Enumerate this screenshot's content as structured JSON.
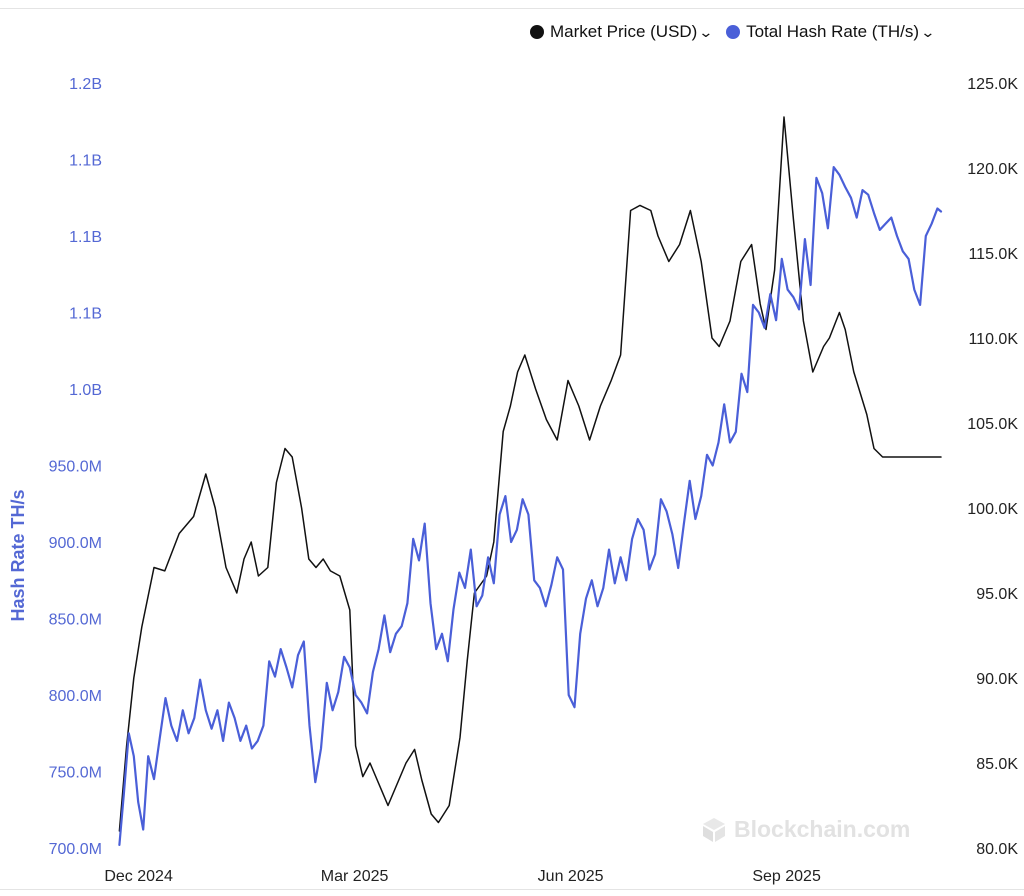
{
  "legend": {
    "price_label": "Market Price (USD)",
    "hash_label": "Total Hash Rate (TH/s)"
  },
  "watermark": "Blockchain.com",
  "colors": {
    "price": "#111111",
    "hash": "#4a5fd8",
    "hash_axis": "#5468d4",
    "axis_text": "#222222"
  },
  "chart_data": {
    "type": "line",
    "title": "",
    "xlabel": "",
    "ylabel_left": "Hash Rate TH/s",
    "ylabel_right": "",
    "x_tick_labels": [
      "Dec 2024",
      "Mar 2025",
      "Jun 2025",
      "Sep 2025"
    ],
    "x_tick_months": [
      1,
      4,
      7,
      10
    ],
    "x_range_months": [
      0.7,
      12.2
    ],
    "left_axis": {
      "range": [
        700,
        1200
      ],
      "ticks": [
        700,
        750,
        800,
        850,
        900,
        950,
        1000,
        1050,
        1100,
        1150,
        1200
      ],
      "tick_labels": [
        "700.0M",
        "750.0M",
        "800.0M",
        "850.0M",
        "900.0M",
        "950.0M",
        "1.0B",
        "1.1B",
        "1.1B",
        "1.1B",
        "1.2B"
      ]
    },
    "right_axis": {
      "range": [
        80000,
        125000
      ],
      "ticks": [
        80000,
        85000,
        90000,
        95000,
        100000,
        105000,
        110000,
        115000,
        120000,
        125000
      ],
      "tick_labels": [
        "80.0K",
        "85.0K",
        "90.0K",
        "95.0K",
        "100.0K",
        "105.0K",
        "110.0K",
        "115.0K",
        "120.0K",
        "125.0K"
      ]
    },
    "series": [
      {
        "name": "Market Price (USD)",
        "axis": "right",
        "x": [
          0.72,
          0.82,
          0.92,
          1.03,
          1.2,
          1.35,
          1.55,
          1.75,
          1.92,
          2.05,
          2.2,
          2.35,
          2.45,
          2.55,
          2.65,
          2.78,
          2.9,
          3.02,
          3.12,
          3.25,
          3.35,
          3.45,
          3.55,
          3.65,
          3.78,
          3.92,
          4.0,
          4.1,
          4.2,
          4.3,
          4.45,
          4.55,
          4.7,
          4.82,
          4.92,
          5.05,
          5.15,
          5.3,
          5.45,
          5.55,
          5.65,
          5.82,
          5.92,
          6.05,
          6.15,
          6.25,
          6.35,
          6.5,
          6.65,
          6.8,
          6.95,
          7.1,
          7.25,
          7.4,
          7.55,
          7.68,
          7.82,
          7.95,
          8.1,
          8.2,
          8.35,
          8.5,
          8.65,
          8.8,
          8.95,
          9.05,
          9.2,
          9.35,
          9.5,
          9.62,
          9.7,
          9.82,
          9.95,
          10.08,
          10.22,
          10.35,
          10.5,
          10.58,
          10.72,
          10.8,
          10.92,
          11.1,
          11.2,
          11.32,
          11.48,
          11.6,
          11.72,
          11.85,
          11.95,
          12.05,
          12.13
        ],
        "values": [
          81000,
          86000,
          90000,
          93000,
          96500,
          96300,
          98500,
          99500,
          102000,
          100000,
          96500,
          95000,
          97000,
          98000,
          96000,
          96500,
          101500,
          103500,
          103000,
          100000,
          97000,
          96500,
          97000,
          96300,
          96000,
          94000,
          86000,
          84200,
          85000,
          84000,
          82500,
          83500,
          85000,
          85800,
          84000,
          82000,
          81500,
          82500,
          86500,
          91000,
          95000,
          96000,
          98000,
          104500,
          106000,
          108000,
          109000,
          107000,
          105200,
          104000,
          107500,
          106000,
          104000,
          106000,
          107500,
          109000,
          117500,
          117800,
          117500,
          116000,
          114500,
          115500,
          117500,
          114500,
          110000,
          109500,
          111000,
          114500,
          115500,
          112000,
          110500,
          114000,
          123000,
          117000,
          111000,
          108000,
          109500,
          110000,
          111500,
          110500,
          108000,
          105500,
          103500,
          103000,
          103000,
          103000,
          103000,
          103000,
          103000,
          103000,
          103000
        ]
      },
      {
        "name": "Total Hash Rate (TH/s)",
        "axis": "left",
        "x": [
          0.72,
          0.78,
          0.85,
          0.92,
          0.98,
          1.05,
          1.12,
          1.2,
          1.28,
          1.36,
          1.44,
          1.52,
          1.6,
          1.68,
          1.76,
          1.84,
          1.92,
          2.0,
          2.08,
          2.16,
          2.24,
          2.32,
          2.4,
          2.48,
          2.56,
          2.64,
          2.72,
          2.8,
          2.88,
          2.96,
          3.04,
          3.12,
          3.2,
          3.28,
          3.36,
          3.44,
          3.52,
          3.6,
          3.68,
          3.76,
          3.84,
          3.92,
          4.0,
          4.08,
          4.16,
          4.24,
          4.32,
          4.4,
          4.48,
          4.56,
          4.64,
          4.72,
          4.8,
          4.88,
          4.96,
          5.04,
          5.12,
          5.2,
          5.28,
          5.36,
          5.44,
          5.52,
          5.6,
          5.68,
          5.76,
          5.84,
          5.92,
          6.0,
          6.08,
          6.16,
          6.24,
          6.32,
          6.4,
          6.48,
          6.56,
          6.64,
          6.72,
          6.8,
          6.88,
          6.96,
          7.04,
          7.12,
          7.2,
          7.28,
          7.36,
          7.44,
          7.52,
          7.6,
          7.68,
          7.76,
          7.84,
          7.92,
          8.0,
          8.08,
          8.16,
          8.24,
          8.32,
          8.4,
          8.48,
          8.56,
          8.64,
          8.72,
          8.8,
          8.88,
          8.96,
          9.04,
          9.12,
          9.2,
          9.28,
          9.36,
          9.44,
          9.52,
          9.6,
          9.68,
          9.76,
          9.84,
          9.92,
          10.0,
          10.08,
          10.16,
          10.24,
          10.32,
          10.4,
          10.48,
          10.56,
          10.64,
          10.72,
          10.8,
          10.88,
          10.96,
          11.04,
          11.12,
          11.2,
          11.28,
          11.36,
          11.44,
          11.52,
          11.6,
          11.68,
          11.76,
          11.84,
          11.92,
          12.0,
          12.08,
          12.13
        ],
        "values": [
          702,
          735,
          775,
          760,
          730,
          712,
          760,
          745,
          772,
          798,
          780,
          770,
          790,
          775,
          785,
          810,
          790,
          778,
          790,
          770,
          795,
          785,
          770,
          780,
          765,
          770,
          780,
          822,
          812,
          830,
          818,
          805,
          826,
          835,
          780,
          743,
          765,
          808,
          790,
          802,
          825,
          818,
          800,
          795,
          788,
          815,
          830,
          852,
          828,
          840,
          845,
          860,
          902,
          888,
          912,
          860,
          830,
          840,
          822,
          856,
          880,
          870,
          895,
          858,
          865,
          890,
          873,
          918,
          930,
          900,
          908,
          928,
          918,
          875,
          870,
          858,
          872,
          890,
          882,
          800,
          792,
          840,
          863,
          875,
          858,
          870,
          895,
          873,
          890,
          875,
          902,
          915,
          908,
          882,
          892,
          928,
          920,
          905,
          883,
          912,
          940,
          915,
          930,
          957,
          950,
          965,
          990,
          965,
          972,
          1010,
          998,
          1055,
          1050,
          1040,
          1062,
          1045,
          1085,
          1065,
          1060,
          1052,
          1098,
          1068,
          1138,
          1128,
          1105,
          1145,
          1140,
          1132,
          1125,
          1112,
          1130,
          1127,
          1115,
          1104,
          1108,
          1112,
          1100,
          1090,
          1085,
          1065,
          1055,
          1100,
          1108,
          1118,
          1116
        ]
      }
    ]
  }
}
